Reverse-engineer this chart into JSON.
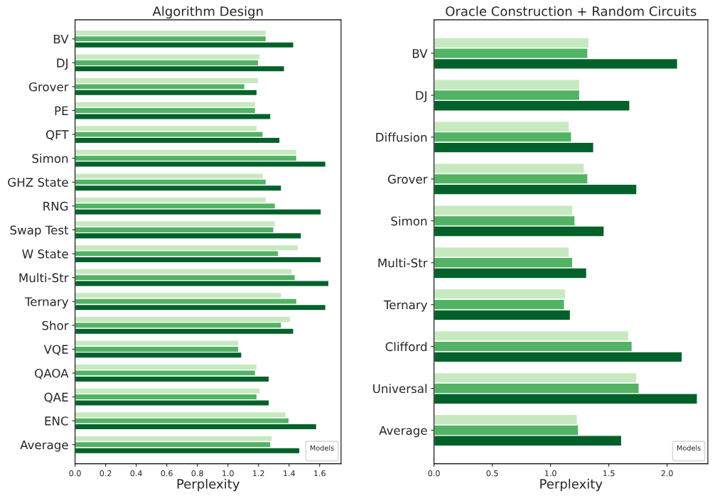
{
  "chart_data": [
    {
      "type": "bar",
      "orientation": "horizontal",
      "title": "Algorithm Design",
      "xlabel": "Perplexity",
      "legend_title": "Models",
      "categories": [
        "BV",
        "DJ",
        "Grover",
        "PE",
        "QFT",
        "Simon",
        "GHZ State",
        "RNG",
        "Swap Test",
        "W State",
        "Multi-Str",
        "Ternary",
        "Shor",
        "VQE",
        "QAOA",
        "QAE",
        "ENC",
        "Average"
      ],
      "xlim": [
        0,
        1.74
      ],
      "xticks": [
        {
          "value": 0,
          "label": "0.0"
        },
        {
          "value": 0.2,
          "label": "0.2"
        },
        {
          "value": 0.4,
          "label": "0.4"
        },
        {
          "value": 0.6,
          "label": "0.6"
        },
        {
          "value": 0.8,
          "label": "0.8"
        },
        {
          "value": 1,
          "label": "1.0"
        },
        {
          "value": 1.2,
          "label": "1.2"
        },
        {
          "value": 1.4,
          "label": "1.4"
        },
        {
          "value": 1.6,
          "label": "1.6"
        }
      ],
      "series": [
        {
          "color": "#c7e9c0",
          "values": [
            1.25,
            1.21,
            1.2,
            1.18,
            1.19,
            1.45,
            1.23,
            1.25,
            1.31,
            1.46,
            1.42,
            1.35,
            1.41,
            1.07,
            1.19,
            1.21,
            1.38,
            1.29
          ]
        },
        {
          "color": "#52b365",
          "values": [
            1.25,
            1.2,
            1.11,
            1.18,
            1.23,
            1.45,
            1.25,
            1.31,
            1.3,
            1.33,
            1.44,
            1.45,
            1.35,
            1.07,
            1.18,
            1.19,
            1.4,
            1.28
          ]
        },
        {
          "color": "#00612a",
          "values": [
            1.43,
            1.37,
            1.19,
            1.28,
            1.34,
            1.64,
            1.35,
            1.61,
            1.48,
            1.61,
            1.66,
            1.64,
            1.43,
            1.09,
            1.27,
            1.27,
            1.58,
            1.47
          ]
        }
      ]
    },
    {
      "type": "bar",
      "orientation": "horizontal",
      "title": "Oracle Construction + Random Circuits",
      "xlabel": "Perplexity",
      "legend_title": "Models",
      "categories": [
        "BV",
        "DJ",
        "Diffusion",
        "Grover",
        "Simon",
        "Multi-Str",
        "Ternary",
        "Clifford",
        "Universal",
        "Average"
      ],
      "xlim": [
        0,
        2.35
      ],
      "xticks": [
        {
          "value": 0,
          "label": "0.0"
        },
        0.5,
        {
          "value": 1,
          "label": "1.0"
        },
        1.5,
        {
          "value": 2,
          "label": "2.0"
        }
      ],
      "series": [
        {
          "color": "#c7e9c0",
          "values": [
            1.33,
            1.25,
            1.16,
            1.29,
            1.19,
            1.16,
            1.13,
            1.67,
            1.74,
            1.23
          ]
        },
        {
          "color": "#52b365",
          "values": [
            1.32,
            1.25,
            1.18,
            1.32,
            1.21,
            1.19,
            1.12,
            1.7,
            1.76,
            1.24
          ]
        },
        {
          "color": "#00612a",
          "values": [
            2.09,
            1.68,
            1.37,
            1.74,
            1.46,
            1.31,
            1.17,
            2.13,
            2.26,
            1.61
          ]
        }
      ]
    }
  ]
}
